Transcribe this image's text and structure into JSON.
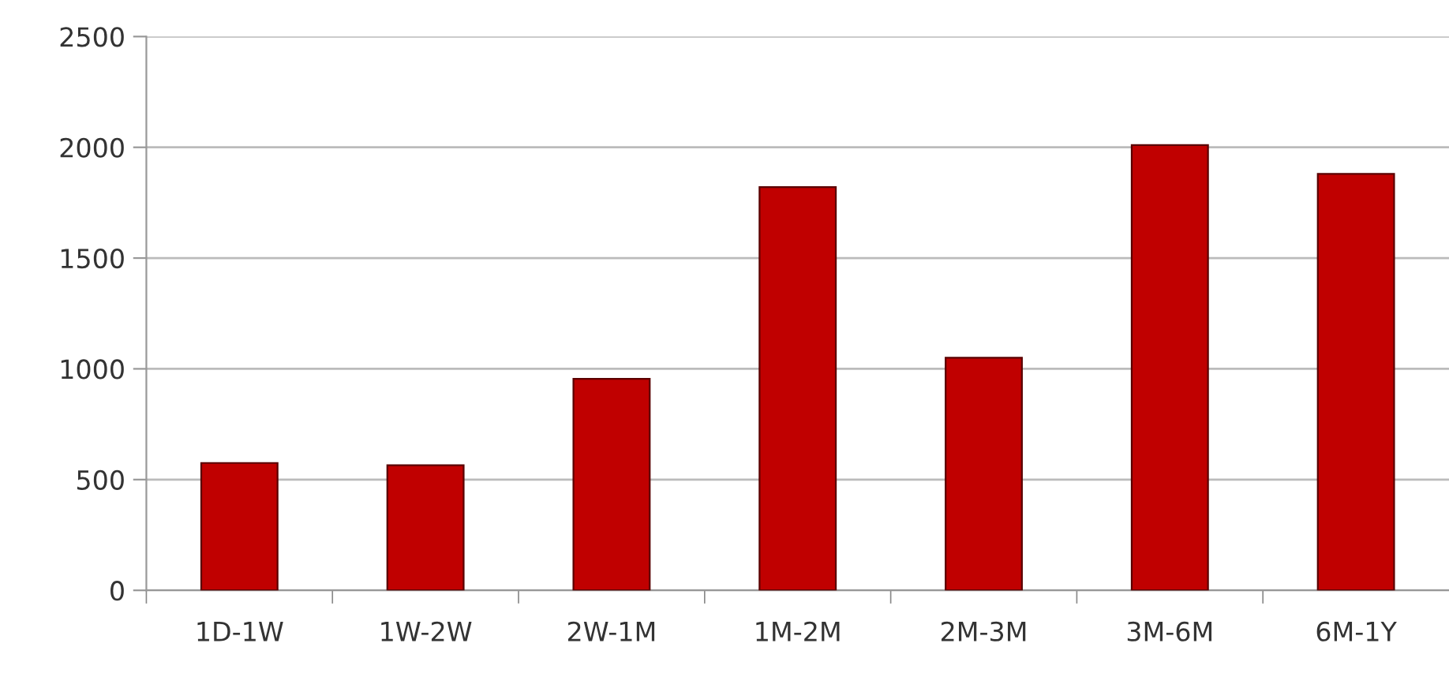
{
  "chart_data": {
    "type": "bar",
    "categories": [
      "1D-1W",
      "1W-2W",
      "2W-1M",
      "1M-2M",
      "2M-3M",
      "3M-6M",
      "6M-1Y"
    ],
    "values": [
      575,
      565,
      955,
      1820,
      1050,
      2010,
      1880
    ],
    "color": "#c00000",
    "ylim": [
      0,
      2500
    ],
    "yticks": [
      0,
      500,
      1000,
      1500,
      2000,
      2500
    ],
    "grid": "y",
    "legend": false
  }
}
